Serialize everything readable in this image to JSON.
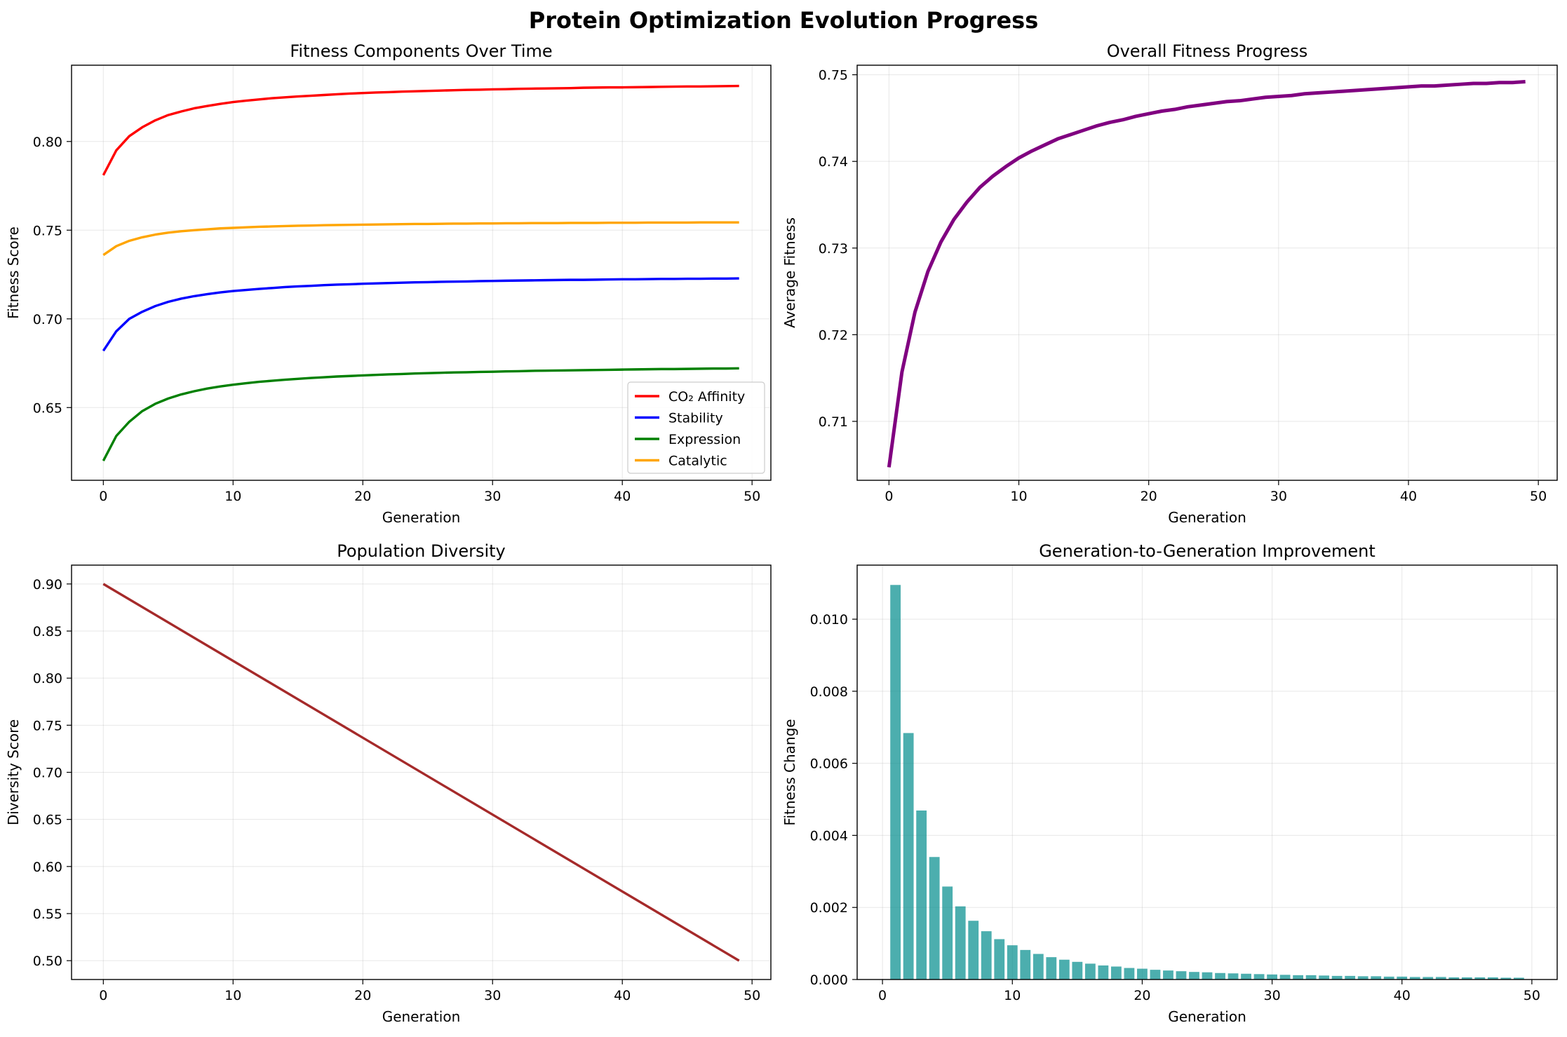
{
  "figure": {
    "suptitle": "Protein Optimization Evolution Progress"
  },
  "chart_data": [
    {
      "id": "components",
      "type": "line",
      "title": "Fitness Components Over Time",
      "xlabel": "Generation",
      "ylabel": "Fitness Score",
      "xlim": [
        -2.45,
        51.45
      ],
      "ylim": [
        0.609,
        0.843
      ],
      "xticks": [
        0,
        10,
        20,
        30,
        40,
        50
      ],
      "yticks": [
        0.65,
        0.7,
        0.75,
        0.8
      ],
      "ytick_decimals": 2,
      "grid": true,
      "legend": "lower-right",
      "x": [
        0,
        1,
        2,
        3,
        4,
        5,
        6,
        7,
        8,
        9,
        10,
        11,
        12,
        13,
        14,
        15,
        16,
        17,
        18,
        19,
        20,
        21,
        22,
        23,
        24,
        25,
        26,
        27,
        28,
        29,
        30,
        31,
        32,
        33,
        34,
        35,
        36,
        37,
        38,
        39,
        40,
        41,
        42,
        43,
        44,
        45,
        46,
        47,
        48,
        49
      ],
      "series": [
        {
          "name": "CO₂ Affinity",
          "color": "#ff0000",
          "values": [
            0.781,
            0.795,
            0.803,
            0.808,
            0.8119,
            0.8149,
            0.8169,
            0.8187,
            0.82,
            0.8212,
            0.8222,
            0.823,
            0.8237,
            0.8244,
            0.8249,
            0.8254,
            0.8258,
            0.8262,
            0.8266,
            0.827,
            0.8273,
            0.8276,
            0.8278,
            0.8281,
            0.8283,
            0.8285,
            0.8287,
            0.8289,
            0.8291,
            0.8292,
            0.8294,
            0.8295,
            0.8297,
            0.8298,
            0.8299,
            0.83,
            0.8301,
            0.8303,
            0.8304,
            0.8305,
            0.8305,
            0.8306,
            0.8307,
            0.8308,
            0.8309,
            0.831,
            0.831,
            0.8311,
            0.8312,
            0.8313
          ]
        },
        {
          "name": "Stability",
          "color": "#0000ff",
          "values": [
            0.682,
            0.693,
            0.7,
            0.704,
            0.7072,
            0.7096,
            0.7114,
            0.7128,
            0.7139,
            0.7149,
            0.7157,
            0.7163,
            0.7169,
            0.7174,
            0.7179,
            0.7183,
            0.7186,
            0.719,
            0.7193,
            0.7195,
            0.7198,
            0.72,
            0.7202,
            0.7204,
            0.7206,
            0.7207,
            0.7209,
            0.721,
            0.7211,
            0.7213,
            0.7214,
            0.7215,
            0.7216,
            0.7217,
            0.7218,
            0.7219,
            0.722,
            0.722,
            0.7221,
            0.7222,
            0.7223,
            0.7223,
            0.7224,
            0.7225,
            0.7225,
            0.7226,
            0.7226,
            0.7227,
            0.7227,
            0.7228
          ]
        },
        {
          "name": "Expression",
          "color": "#008000",
          "values": [
            0.62,
            0.634,
            0.642,
            0.648,
            0.6521,
            0.6551,
            0.6574,
            0.6592,
            0.6607,
            0.6619,
            0.6629,
            0.6637,
            0.6645,
            0.6651,
            0.6657,
            0.6662,
            0.6667,
            0.6671,
            0.6675,
            0.6678,
            0.6681,
            0.6684,
            0.6687,
            0.6689,
            0.6692,
            0.6694,
            0.6696,
            0.6698,
            0.6699,
            0.6701,
            0.6702,
            0.6704,
            0.6705,
            0.6707,
            0.6708,
            0.6709,
            0.671,
            0.6711,
            0.6712,
            0.6713,
            0.6714,
            0.6715,
            0.6716,
            0.6717,
            0.6717,
            0.6718,
            0.6719,
            0.672,
            0.672,
            0.6721
          ]
        },
        {
          "name": "Catalytic",
          "color": "#ffa500",
          "values": [
            0.736,
            0.741,
            0.744,
            0.746,
            0.7475,
            0.7486,
            0.7494,
            0.75,
            0.7505,
            0.751,
            0.7513,
            0.7516,
            0.7519,
            0.7521,
            0.7523,
            0.7525,
            0.7526,
            0.7528,
            0.7529,
            0.753,
            0.7531,
            0.7532,
            0.7533,
            0.7534,
            0.7535,
            0.7535,
            0.7536,
            0.7537,
            0.7537,
            0.7538,
            0.7538,
            0.7539,
            0.7539,
            0.754,
            0.754,
            0.754,
            0.7541,
            0.7541,
            0.7541,
            0.7542,
            0.7542,
            0.7542,
            0.7543,
            0.7543,
            0.7543,
            0.7543,
            0.7544,
            0.7544,
            0.7544,
            0.7544
          ]
        }
      ]
    },
    {
      "id": "overall",
      "type": "line",
      "title": "Overall Fitness Progress",
      "xlabel": "Generation",
      "ylabel": "Average Fitness",
      "xlim": [
        -2.45,
        51.45
      ],
      "ylim": [
        0.7032,
        0.7511
      ],
      "xticks": [
        0,
        10,
        20,
        30,
        40,
        50
      ],
      "yticks": [
        0.71,
        0.72,
        0.73,
        0.74,
        0.75
      ],
      "ytick_decimals": 2,
      "grid": true,
      "x": [
        0,
        1,
        2,
        3,
        4,
        5,
        6,
        7,
        8,
        9,
        10,
        11,
        12,
        13,
        14,
        15,
        16,
        17,
        18,
        19,
        20,
        21,
        22,
        23,
        24,
        25,
        26,
        27,
        28,
        29,
        30,
        31,
        32,
        33,
        34,
        35,
        36,
        37,
        38,
        39,
        40,
        41,
        42,
        43,
        44,
        45,
        46,
        47,
        48,
        49
      ],
      "series": [
        {
          "color": "#800080",
          "values": [
            0.7047,
            0.7157,
            0.7226,
            0.7273,
            0.7307,
            0.7333,
            0.7353,
            0.737,
            0.7383,
            0.7394,
            0.7404,
            0.7412,
            0.7419,
            0.7426,
            0.7431,
            0.7436,
            0.7441,
            0.7445,
            0.7448,
            0.7452,
            0.7455,
            0.7458,
            0.746,
            0.7463,
            0.7465,
            0.7467,
            0.7469,
            0.747,
            0.7472,
            0.7474,
            0.7475,
            0.7476,
            0.7478,
            0.7479,
            0.748,
            0.7481,
            0.7482,
            0.7483,
            0.7484,
            0.7485,
            0.7486,
            0.7487,
            0.7487,
            0.7488,
            0.7489,
            0.749,
            0.749,
            0.7491,
            0.7491,
            0.7492
          ]
        }
      ]
    },
    {
      "id": "diversity",
      "type": "line",
      "title": "Population Diversity",
      "xlabel": "Generation",
      "ylabel": "Diversity Score",
      "xlim": [
        -2.45,
        51.45
      ],
      "ylim": [
        0.48,
        0.92
      ],
      "xticks": [
        0,
        10,
        20,
        30,
        40,
        50
      ],
      "yticks": [
        0.5,
        0.55,
        0.6,
        0.65,
        0.7,
        0.75,
        0.8,
        0.85,
        0.9
      ],
      "ytick_decimals": 2,
      "grid": true,
      "x": [
        0,
        49
      ],
      "series": [
        {
          "color": "#a52a2a",
          "values": [
            0.9,
            0.5
          ]
        }
      ]
    },
    {
      "id": "improvement",
      "type": "bar",
      "title": "Generation-to-Generation Improvement",
      "xlabel": "Generation",
      "ylabel": "Fitness Change",
      "xlim": [
        -1.95,
        51.95
      ],
      "ylim": [
        0,
        0.0115
      ],
      "xticks": [
        0,
        10,
        20,
        30,
        40,
        50
      ],
      "yticks": [
        0.0,
        0.002,
        0.004,
        0.006,
        0.008,
        0.01
      ],
      "ytick_decimals": 3,
      "grid": true,
      "color": "#008b8b",
      "bar_alpha": 0.7,
      "bar_width": 0.8,
      "x": [
        1,
        2,
        3,
        4,
        5,
        6,
        7,
        8,
        9,
        10,
        11,
        12,
        13,
        14,
        15,
        16,
        17,
        18,
        19,
        20,
        21,
        22,
        23,
        24,
        25,
        26,
        27,
        28,
        29,
        30,
        31,
        32,
        33,
        34,
        35,
        36,
        37,
        38,
        39,
        40,
        41,
        42,
        43,
        44,
        45,
        46,
        47,
        48,
        49
      ],
      "values": [
        0.01095,
        0.00684,
        0.00469,
        0.0034,
        0.00258,
        0.00203,
        0.00163,
        0.00134,
        0.00112,
        0.00095,
        0.00082,
        0.00071,
        0.00062,
        0.00055,
        0.00049,
        0.00044,
        0.00039,
        0.00036,
        0.00032,
        0.0003,
        0.00027,
        0.00025,
        0.00023,
        0.00021,
        0.0002,
        0.00018,
        0.00017,
        0.00016,
        0.00015,
        0.00014,
        0.00013,
        0.00012,
        0.00012,
        0.00011,
        0.0001,
        0.0001,
        9e-05,
        9e-05,
        8e-05,
        8e-05,
        7e-05,
        7e-05,
        7e-05,
        6e-05,
        6e-05,
        6e-05,
        6e-05,
        5e-05,
        5e-05
      ]
    }
  ]
}
